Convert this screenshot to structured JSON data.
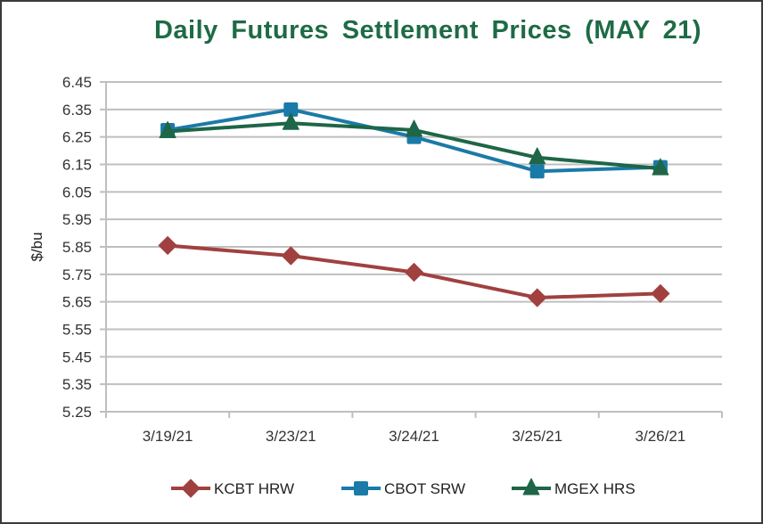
{
  "chart_data": {
    "type": "line",
    "title": "Daily Futures Settlement Prices (MAY 21)",
    "xlabel": "",
    "ylabel": "$/bu",
    "categories": [
      "3/19/21",
      "3/23/21",
      "3/24/21",
      "3/25/21",
      "3/26/21"
    ],
    "ylim": [
      5.25,
      6.45
    ],
    "yticks": [
      "6.45",
      "6.35",
      "6.25",
      "6.15",
      "6.05",
      "5.95",
      "5.85",
      "5.75",
      "5.65",
      "5.55",
      "5.45",
      "5.35",
      "5.25"
    ],
    "grid": true,
    "legend_position": "bottom",
    "series": [
      {
        "name": "KCBT HRW",
        "marker": "diamond",
        "color": "#a0413f",
        "values": [
          5.855,
          5.8175,
          5.7575,
          5.665,
          5.68
        ]
      },
      {
        "name": "CBOT SRW",
        "marker": "square",
        "color": "#1a7aa8",
        "values": [
          6.275,
          6.35,
          6.25,
          6.125,
          6.14
        ]
      },
      {
        "name": "MGEX HRS",
        "marker": "triangle",
        "color": "#1e6647",
        "values": [
          6.27,
          6.3,
          6.275,
          6.175,
          6.135
        ]
      }
    ]
  }
}
